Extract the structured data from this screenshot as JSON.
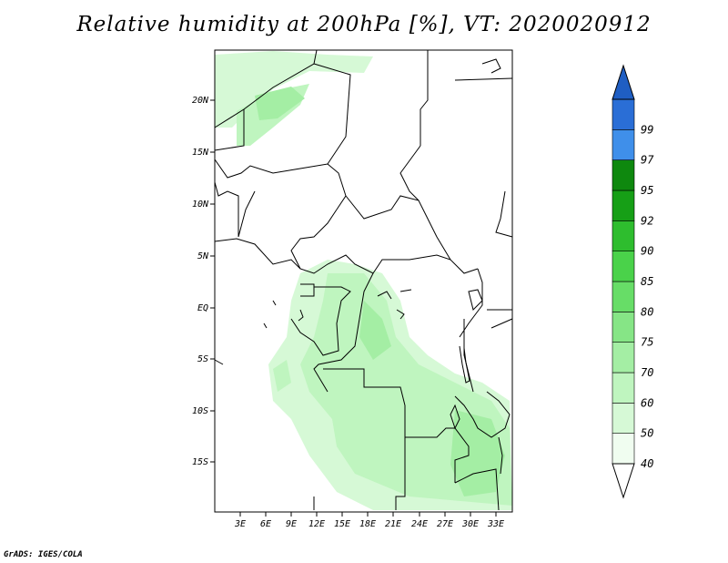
{
  "title": "Relative humidity at 200hPa [%], VT: 2020020912",
  "credit": "GrADS: IGES/COLA",
  "map": {
    "lat_labels": [
      "20N",
      "15N",
      "10N",
      "5N",
      "EQ",
      "5S",
      "10S",
      "15S"
    ],
    "lon_labels": [
      "3E",
      "6E",
      "9E",
      "12E",
      "15E",
      "18E",
      "21E",
      "24E",
      "27E",
      "30E",
      "33E"
    ]
  },
  "colorbar": {
    "levels": [
      {
        "label": "40",
        "color": "#f0fdf0"
      },
      {
        "label": "50",
        "color": "#d6f9d6"
      },
      {
        "label": "60",
        "color": "#bff5bf"
      },
      {
        "label": "70",
        "color": "#a4eea4"
      },
      {
        "label": "75",
        "color": "#86e586"
      },
      {
        "label": "80",
        "color": "#67dd67"
      },
      {
        "label": "85",
        "color": "#4ad24a"
      },
      {
        "label": "90",
        "color": "#2ebd2e"
      },
      {
        "label": "92",
        "color": "#169f16"
      },
      {
        "label": "95",
        "color": "#0e880e"
      },
      {
        "label": "97",
        "color": "#3f8fea"
      },
      {
        "label": "99",
        "color": "#2a6ed6"
      }
    ],
    "top_arrow_color": "#1f5ec3",
    "bottom_arrow_color": "#ffffff"
  }
}
